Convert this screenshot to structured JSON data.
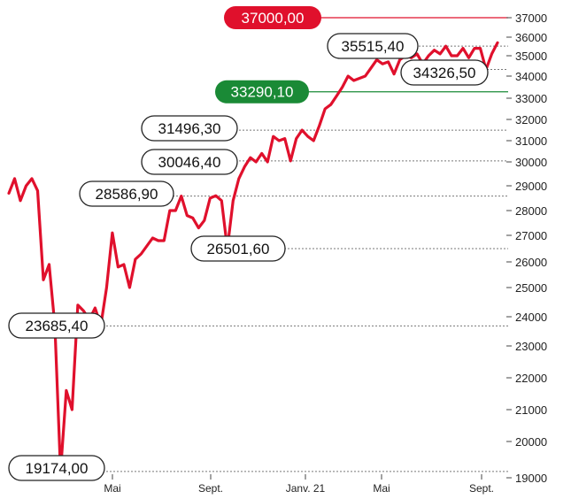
{
  "chart_data": {
    "type": "line",
    "title": "",
    "xlabel": "",
    "ylabel": "",
    "x_tick_labels": [
      "Mai",
      "Sept.",
      "Janv. 21",
      "Mai",
      "Sept."
    ],
    "y_ticks": [
      "19000",
      "20000",
      "21000",
      "22000",
      "23000",
      "24000",
      "25000",
      "26000",
      "27000",
      "28000",
      "29000",
      "30000",
      "31000",
      "32000",
      "33000",
      "34000",
      "35000",
      "36000",
      "37000"
    ],
    "series": [
      {
        "color": "#e0102c",
        "values": [
          28700,
          29300,
          28400,
          29000,
          29300,
          28800,
          25300,
          25900,
          23685.4,
          19174,
          21600,
          21000,
          24400,
          24200,
          23900,
          24300,
          23700,
          25000,
          27100,
          25800,
          25900,
          25000,
          26100,
          26300,
          26600,
          26900,
          26800,
          26800,
          28000,
          28000,
          28586.9,
          27800,
          27700,
          27300,
          27600,
          28500,
          28600,
          28400,
          26501.6,
          28400,
          29300,
          29800,
          30200,
          30000,
          30400,
          30000,
          31200,
          31000,
          31100,
          30046.4,
          31100,
          31496.3,
          31200,
          31000,
          31700,
          32500,
          32700,
          33100,
          33500,
          34000,
          33800,
          33900,
          34000,
          34400,
          34800,
          34600,
          34700,
          34100,
          34800,
          35000,
          34900,
          35100,
          34600,
          35000,
          35300,
          35100,
          35515.4,
          35000,
          35000,
          35400,
          34900,
          35400,
          35400,
          34326.5,
          35100,
          35700
        ]
      }
    ],
    "reference_lines": [
      {
        "value": "37000,00",
        "level": 37000,
        "color": "#e0102c"
      },
      {
        "value": "33290,10",
        "level": 33290.1,
        "color": "#1a8a36"
      }
    ],
    "callouts": [
      {
        "text": "35515,40",
        "level": 35515.4
      },
      {
        "text": "34326,50",
        "level": 34326.5
      },
      {
        "text": "31496,30",
        "level": 31496.3
      },
      {
        "text": "30046,40",
        "level": 30046.4
      },
      {
        "text": "28586,90",
        "level": 28586.9
      },
      {
        "text": "26501,60",
        "level": 26501.6
      },
      {
        "text": "23685,40",
        "level": 23685.4
      },
      {
        "text": "19174,00",
        "level": 19174
      }
    ],
    "grid": false,
    "legend": "none"
  }
}
